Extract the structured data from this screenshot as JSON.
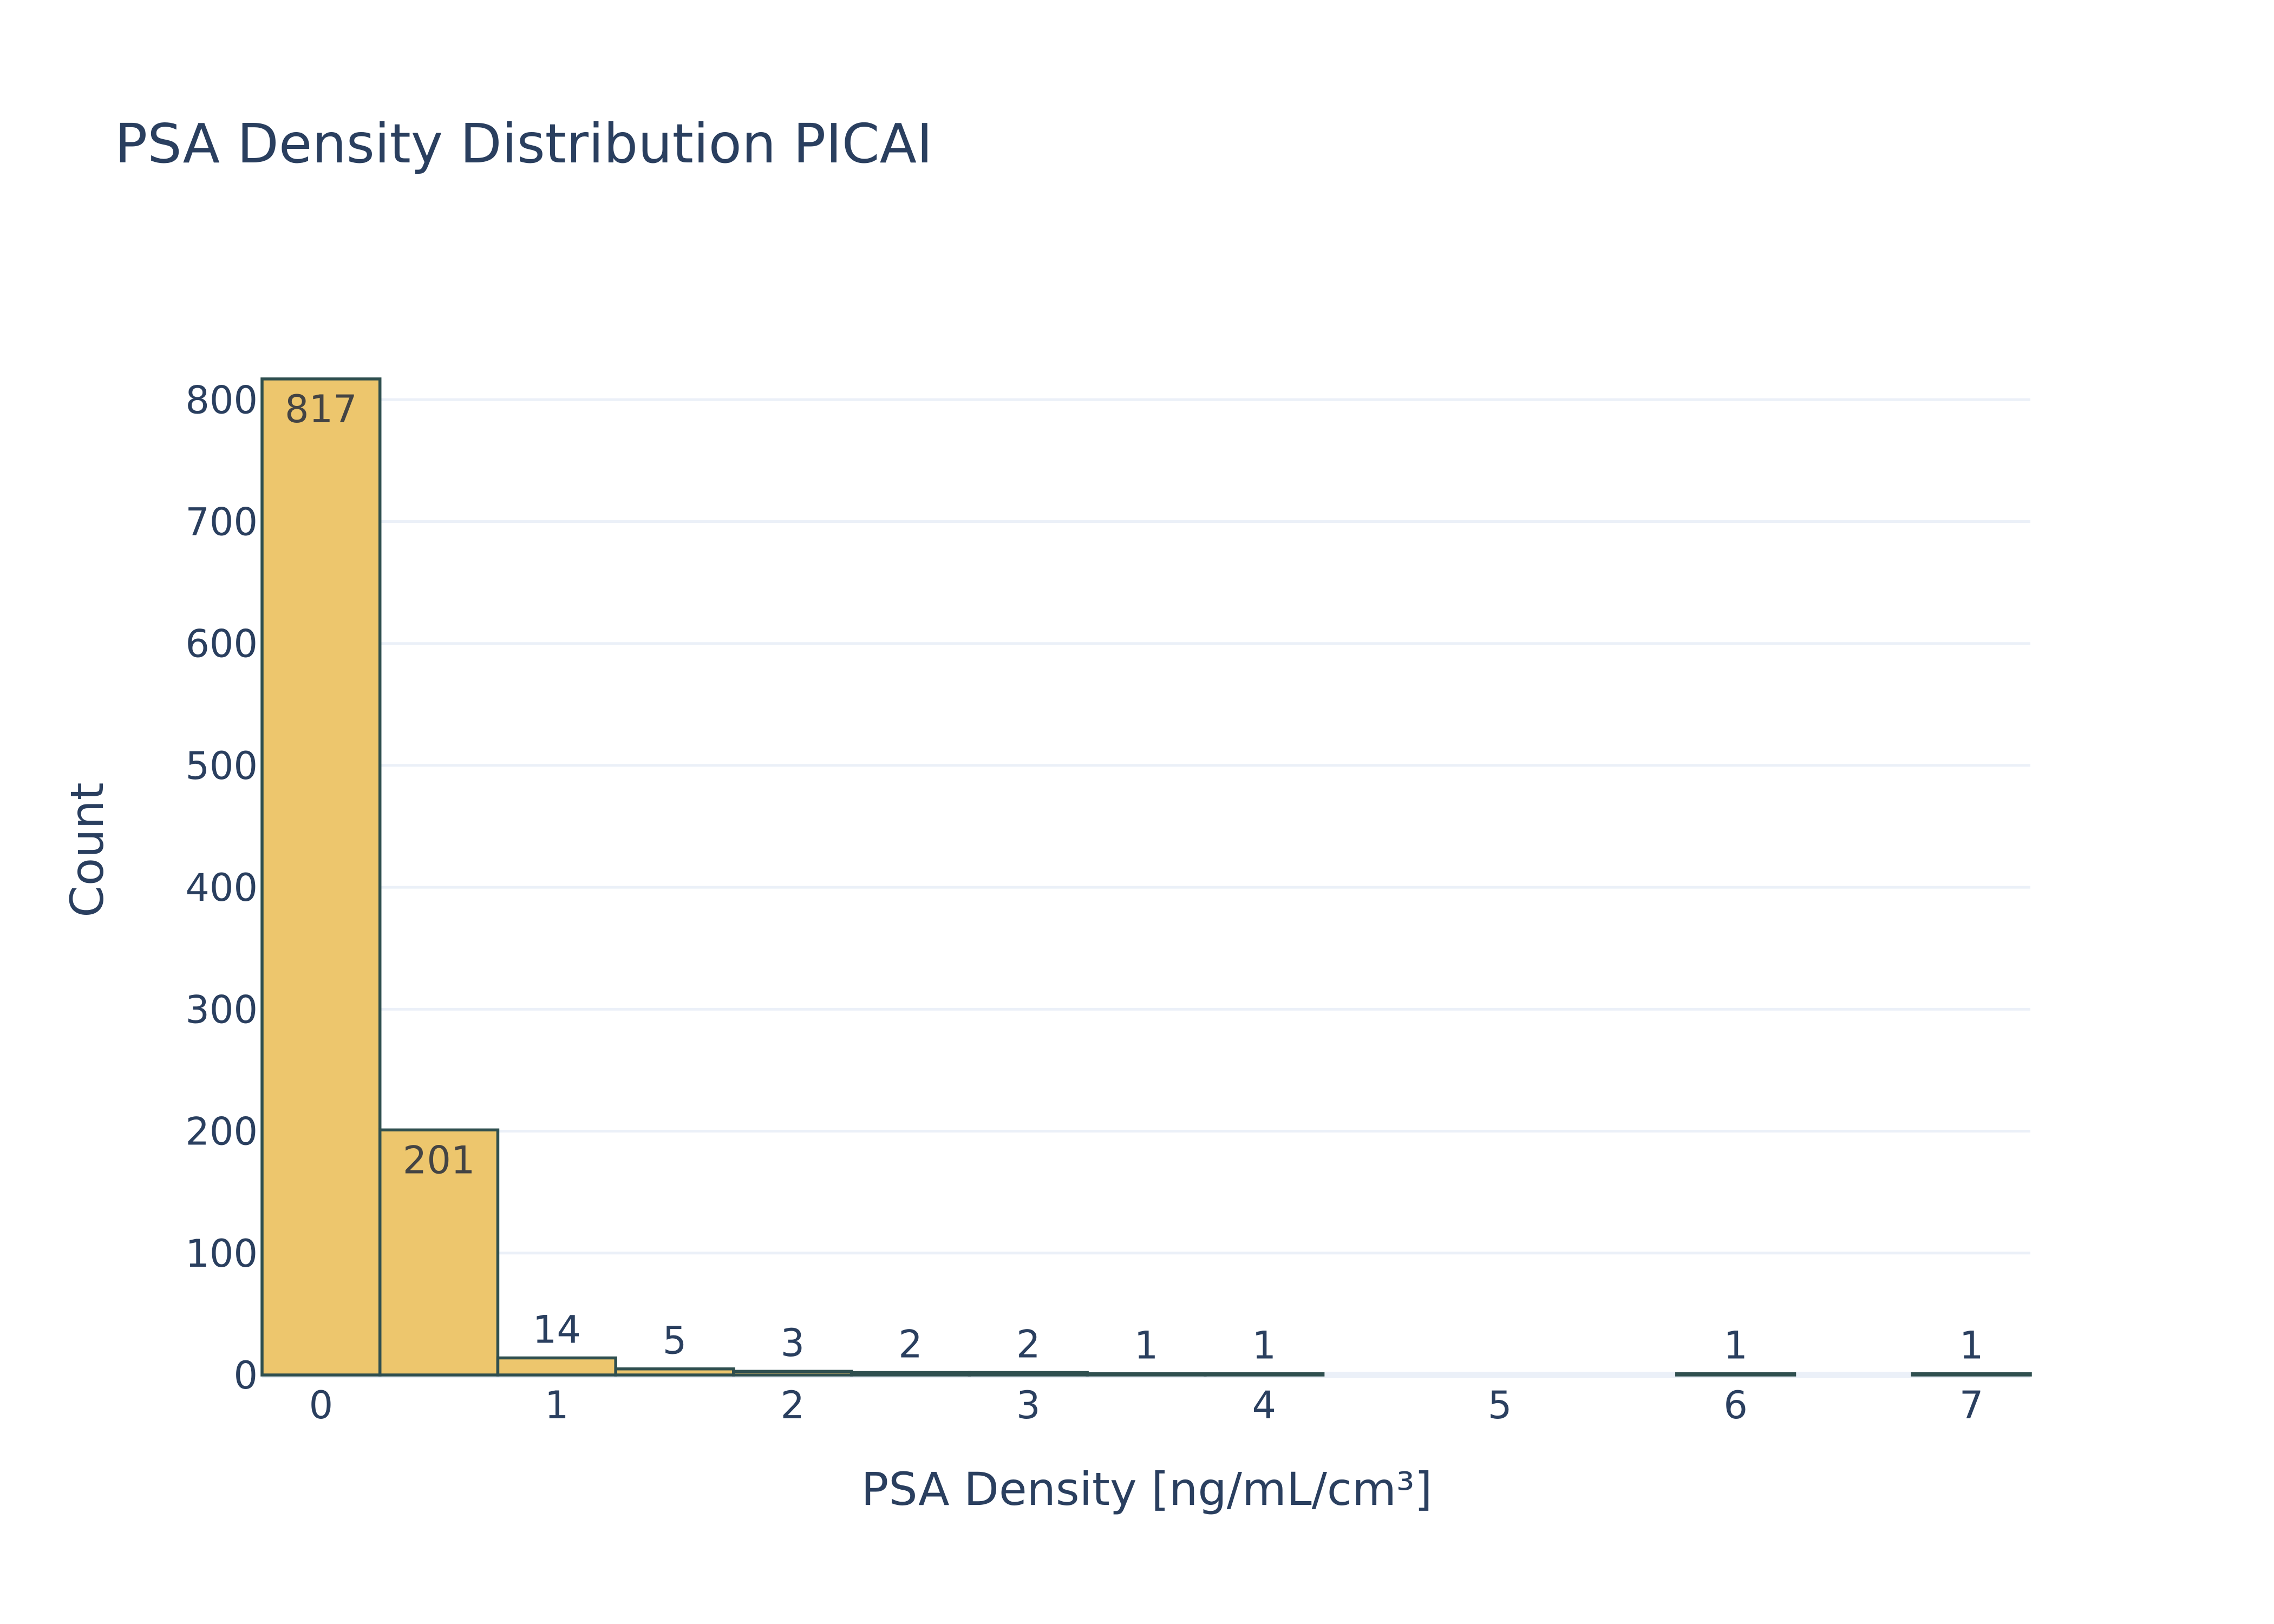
{
  "chart_data": {
    "type": "bar",
    "title": "PSA Density Distribution PICAI",
    "xlabel": "PSA Density [ng/mL/cm³]",
    "ylabel": "Count",
    "bin_width": 0.5,
    "bins": [
      {
        "start": -0.25,
        "end": 0.25,
        "count": 817
      },
      {
        "start": 0.25,
        "end": 0.75,
        "count": 201
      },
      {
        "start": 0.75,
        "end": 1.25,
        "count": 14
      },
      {
        "start": 1.25,
        "end": 1.75,
        "count": 5
      },
      {
        "start": 1.75,
        "end": 2.25,
        "count": 3
      },
      {
        "start": 2.25,
        "end": 2.75,
        "count": 2
      },
      {
        "start": 2.75,
        "end": 3.25,
        "count": 2
      },
      {
        "start": 3.25,
        "end": 3.75,
        "count": 1
      },
      {
        "start": 3.75,
        "end": 4.25,
        "count": 1
      },
      {
        "start": 5.75,
        "end": 6.25,
        "count": 1
      },
      {
        "start": 6.75,
        "end": 7.25,
        "count": 1
      }
    ],
    "xlim": [
      -0.25,
      7.25
    ],
    "ylim": [
      0,
      817
    ],
    "x_ticks": [
      "0",
      "1",
      "2",
      "3",
      "4",
      "5",
      "6",
      "7"
    ],
    "y_ticks": [
      "0",
      "100",
      "200",
      "300",
      "400",
      "500",
      "600",
      "700",
      "800"
    ],
    "grid": true,
    "legend": "none",
    "colors": {
      "bar_fill": "#edc66d",
      "bar_outline": "#2f4f4f",
      "text": "#2a3f5f",
      "grid": "#ebf0f8",
      "label_inside": "#444444"
    }
  }
}
